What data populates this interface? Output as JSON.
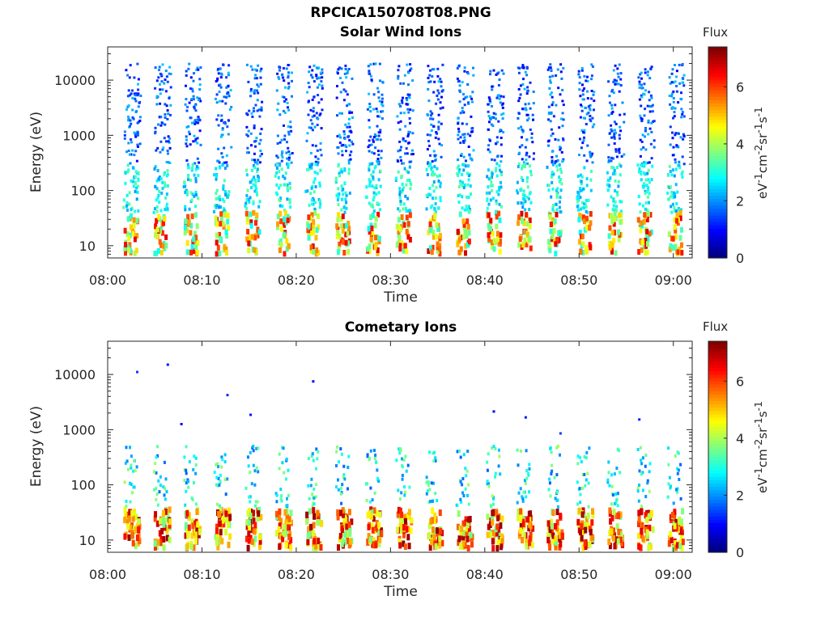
{
  "figure": {
    "title": "RPCICA150708T08.PNG"
  },
  "colors": {
    "axis": "#262626",
    "background": "#ffffff",
    "colormap": "jet"
  },
  "chart_data": [
    {
      "type": "heatmap",
      "title": "Solar Wind Ions",
      "xlabel": "Time",
      "ylabel": "Energy (eV)",
      "yscale": "log",
      "ylim": [
        6,
        40000
      ],
      "xlim": [
        "08:00",
        "09:02"
      ],
      "x_ticks": [
        "08:00",
        "08:10",
        "08:20",
        "08:30",
        "08:40",
        "08:50",
        "09:00"
      ],
      "y_ticks": [
        "10",
        "100",
        "1000",
        "10000"
      ],
      "colorbar": {
        "title": "Flux",
        "label": "eV-1cm-2sr-1s-1",
        "ticks": [
          "0",
          "2",
          "4",
          "6"
        ],
        "range": [
          0,
          7.4
        ]
      },
      "grid": false,
      "sweep_minutes": [
        2.2,
        5.4,
        8.6,
        11.8,
        15.1,
        18.3,
        21.5,
        24.7,
        27.9,
        31.1,
        34.3,
        37.5,
        40.7,
        43.9,
        47.1,
        50.3,
        53.5,
        56.7,
        59.9
      ],
      "features": {
        "low_energy_band_eV": [
          8,
          40
        ],
        "low_energy_flux": 6,
        "high_energy_band_eV": [
          300,
          20000
        ],
        "high_energy_flux": 1.5
      }
    },
    {
      "type": "heatmap",
      "title": "Cometary Ions",
      "xlabel": "Time",
      "ylabel": "Energy (eV)",
      "yscale": "log",
      "ylim": [
        6,
        40000
      ],
      "xlim": [
        "08:00",
        "09:02"
      ],
      "x_ticks": [
        "08:00",
        "08:10",
        "08:20",
        "08:30",
        "08:40",
        "08:50",
        "09:00"
      ],
      "y_ticks": [
        "10",
        "100",
        "1000",
        "10000"
      ],
      "colorbar": {
        "title": "Flux",
        "label": "eV-1cm-2sr-1s-1",
        "ticks": [
          "0",
          "2",
          "4",
          "6"
        ],
        "range": [
          0,
          7.4
        ]
      },
      "grid": false,
      "sweep_minutes": [
        2.2,
        5.4,
        8.6,
        11.8,
        15.1,
        18.3,
        21.5,
        24.7,
        27.9,
        31.1,
        34.3,
        37.5,
        40.7,
        43.9,
        47.1,
        50.3,
        53.5,
        56.7,
        59.9
      ],
      "features": {
        "core_band_eV": [
          8,
          40
        ],
        "core_flux": 6.8,
        "halo_band_eV": [
          40,
          500
        ],
        "halo_flux": 3,
        "sparse_points_eV": [
          500,
          40000
        ]
      }
    }
  ]
}
